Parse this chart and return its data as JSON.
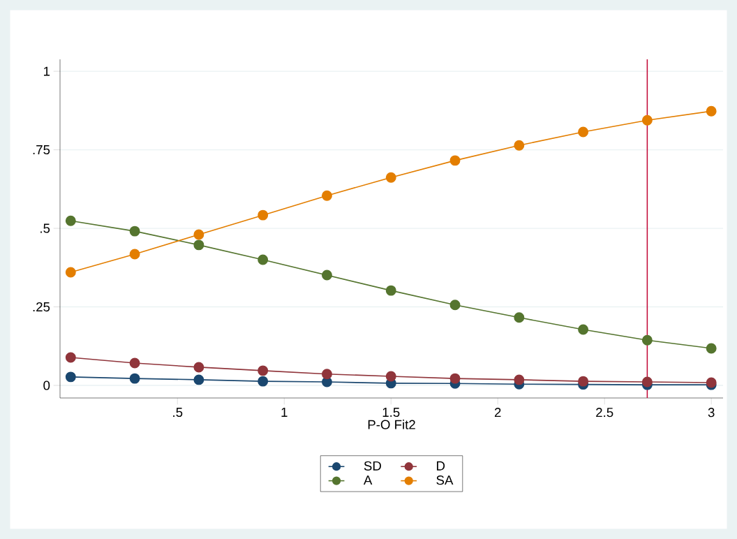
{
  "chart_data": {
    "type": "line",
    "xlabel": "P-O Fit2",
    "x": [
      0,
      0.3,
      0.6,
      0.9,
      1.2,
      1.5,
      1.8,
      2.1,
      2.4,
      2.7,
      3.0
    ],
    "series": [
      {
        "name": "SD",
        "color": "#1a476f",
        "values": [
          0.027,
          0.022,
          0.018,
          0.013,
          0.011,
          0.007,
          0.006,
          0.004,
          0.003,
          0.002,
          0.002
        ]
      },
      {
        "name": "D",
        "color": "#90353b",
        "values": [
          0.089,
          0.071,
          0.058,
          0.047,
          0.036,
          0.029,
          0.022,
          0.018,
          0.013,
          0.011,
          0.009
        ]
      },
      {
        "name": "A",
        "color": "#55752f",
        "values": [
          0.524,
          0.491,
          0.447,
          0.4,
          0.351,
          0.302,
          0.256,
          0.216,
          0.178,
          0.144,
          0.118
        ]
      },
      {
        "name": "SA",
        "color": "#e37e00",
        "values": [
          0.36,
          0.418,
          0.48,
          0.542,
          0.604,
          0.662,
          0.716,
          0.764,
          0.807,
          0.844,
          0.873
        ]
      }
    ],
    "xlim": [
      -0.05,
      3.055
    ],
    "ylim": [
      -0.04,
      1.038
    ],
    "xticks": [
      {
        "value": 0.5,
        "label": ".5"
      },
      1,
      1.5,
      2,
      2.5,
      3
    ],
    "yticks": [
      0,
      {
        "value": 0.25,
        "label": ".25"
      },
      {
        "value": 0.5,
        "label": ".5"
      },
      {
        "value": 0.75,
        "label": ".75"
      },
      1
    ],
    "ref_lines": [
      {
        "axis": "x",
        "value": 2.7,
        "color": "#c10534"
      }
    ],
    "grid": "y",
    "legend": "bottom",
    "marker": "circle",
    "line_style": "solid"
  }
}
